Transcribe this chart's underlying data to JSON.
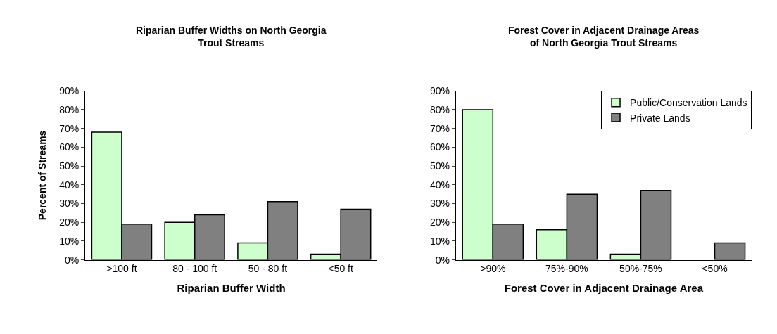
{
  "chart_data": [
    {
      "type": "bar",
      "title": "Riparian Buffer Widths on North Georgia Trout Streams",
      "xlabel": "Riparian Buffer Width",
      "ylabel": "Percent of Streams",
      "categories": [
        ">100 ft",
        "80 - 100 ft",
        "50 - 80 ft",
        "<50 ft"
      ],
      "series": [
        {
          "color": "#ccffcc",
          "values": [
            68,
            20,
            9,
            3
          ]
        },
        {
          "color": "#808080",
          "values": [
            19,
            24,
            31,
            27
          ]
        }
      ],
      "ylim": [
        0,
        90
      ],
      "yticks": [
        {
          "value": 0,
          "label": "0%"
        },
        {
          "value": 10,
          "label": "10%"
        },
        {
          "value": 20,
          "label": "20%"
        },
        {
          "value": 30,
          "label": "30%"
        },
        {
          "value": 40,
          "label": "40%"
        },
        {
          "value": 50,
          "label": "50%"
        },
        {
          "value": 60,
          "label": "60%"
        },
        {
          "value": 70,
          "label": "70%"
        },
        {
          "value": 80,
          "label": "80%"
        },
        {
          "value": 90,
          "label": "90%"
        }
      ],
      "legend": false
    },
    {
      "type": "bar",
      "title": "Forest Cover in Adjacent Drainage Areas of North Georgia Trout Streams",
      "xlabel": "Forest Cover in Adjacent Drainage Area",
      "categories": [
        ">90%",
        "75%-90%",
        "50%-75%",
        "<50%"
      ],
      "series": [
        {
          "name": "Public/Conservation Lands",
          "color": "#ccffcc",
          "values": [
            80,
            16,
            3,
            null
          ]
        },
        {
          "name": "Private Lands",
          "color": "#808080",
          "values": [
            19,
            35,
            37,
            9
          ]
        }
      ],
      "ylim": [
        0,
        90
      ],
      "yticks": [
        {
          "value": 0,
          "label": "0%"
        },
        {
          "value": 10,
          "label": "10%"
        },
        {
          "value": 20,
          "label": "20%"
        },
        {
          "value": 30,
          "label": "30%"
        },
        {
          "value": 40,
          "label": "40%"
        },
        {
          "value": 50,
          "label": "50%"
        },
        {
          "value": 60,
          "label": "60%"
        },
        {
          "value": 70,
          "label": "70%"
        },
        {
          "value": 80,
          "label": "80%"
        },
        {
          "value": 90,
          "label": "90%"
        }
      ],
      "legend": "top right"
    }
  ]
}
